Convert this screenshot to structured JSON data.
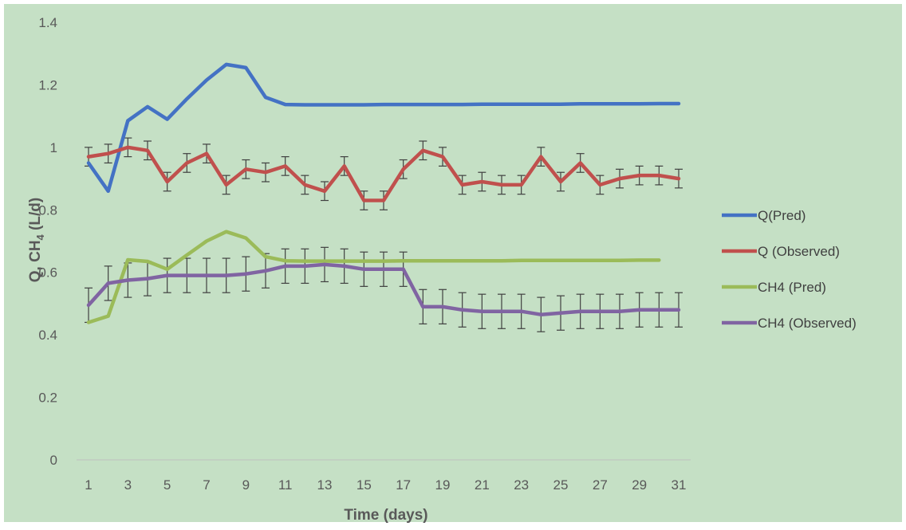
{
  "chart_data": {
    "type": "line",
    "xlabel": "Time (days)",
    "ylabel_main": "Q, CH",
    "ylabel_sub": "4",
    "ylabel_tail": " (L/d)",
    "ylim": [
      0,
      1.4
    ],
    "yticks": [
      "0",
      "0.2",
      "0.4",
      "0.6",
      "0.8",
      "1",
      "1.2",
      "1.4"
    ],
    "xlim": [
      1,
      31
    ],
    "xticks": [
      "1",
      "3",
      "5",
      "7",
      "9",
      "11",
      "13",
      "15",
      "17",
      "19",
      "21",
      "23",
      "25",
      "27",
      "29",
      "31"
    ],
    "background_color": "#c5e0c5",
    "grid": false,
    "legend_position": "right",
    "series": [
      {
        "name": "Q(Pred)",
        "color": "#4472c4",
        "x": [
          1,
          2,
          3,
          4,
          5,
          6,
          7,
          8,
          9,
          10,
          11,
          12,
          13,
          14,
          15,
          16,
          17,
          18,
          19,
          20,
          21,
          22,
          23,
          24,
          25,
          26,
          27,
          28,
          29,
          30,
          31
        ],
        "values": [
          0.95,
          0.86,
          1.085,
          1.13,
          1.09,
          1.155,
          1.215,
          1.265,
          1.255,
          1.16,
          1.137,
          1.136,
          1.136,
          1.136,
          1.136,
          1.137,
          1.137,
          1.137,
          1.137,
          1.137,
          1.138,
          1.138,
          1.138,
          1.138,
          1.138,
          1.139,
          1.139,
          1.139,
          1.139,
          1.14,
          1.14
        ]
      },
      {
        "name": "Q (Observed)",
        "color": "#c0504d",
        "error": 0.03,
        "x": [
          1,
          2,
          3,
          4,
          5,
          6,
          7,
          8,
          9,
          10,
          11,
          12,
          13,
          14,
          15,
          16,
          17,
          18,
          19,
          20,
          21,
          22,
          23,
          24,
          25,
          26,
          27,
          28,
          29,
          30,
          31
        ],
        "values": [
          0.97,
          0.98,
          1.0,
          0.99,
          0.89,
          0.95,
          0.98,
          0.88,
          0.93,
          0.92,
          0.94,
          0.88,
          0.86,
          0.94,
          0.83,
          0.83,
          0.93,
          0.99,
          0.97,
          0.88,
          0.89,
          0.88,
          0.88,
          0.97,
          0.89,
          0.95,
          0.88,
          0.9,
          0.91,
          0.91,
          0.9
        ]
      },
      {
        "name": "CH4 (Pred)",
        "color": "#9bbb59",
        "x": [
          1,
          2,
          3,
          4,
          5,
          6,
          7,
          8,
          9,
          10,
          11,
          12,
          13,
          14,
          15,
          16,
          17,
          18,
          19,
          20,
          21,
          22,
          23,
          24,
          25,
          26,
          27,
          28,
          29,
          30
        ],
        "values": [
          0.44,
          0.46,
          0.64,
          0.635,
          0.61,
          0.655,
          0.7,
          0.73,
          0.71,
          0.65,
          0.637,
          0.636,
          0.636,
          0.636,
          0.636,
          0.636,
          0.637,
          0.637,
          0.637,
          0.637,
          0.637,
          0.637,
          0.638,
          0.638,
          0.638,
          0.638,
          0.638,
          0.638,
          0.639,
          0.639
        ]
      },
      {
        "name": "CH4 (Observed)",
        "color": "#8064a2",
        "error": 0.055,
        "x": [
          1,
          2,
          3,
          4,
          5,
          6,
          7,
          8,
          9,
          10,
          11,
          12,
          13,
          14,
          15,
          16,
          17,
          18,
          19,
          20,
          21,
          22,
          23,
          24,
          25,
          26,
          27,
          28,
          29,
          30,
          31
        ],
        "values": [
          0.495,
          0.565,
          0.575,
          0.58,
          0.59,
          0.59,
          0.59,
          0.59,
          0.595,
          0.605,
          0.62,
          0.62,
          0.625,
          0.62,
          0.61,
          0.61,
          0.61,
          0.49,
          0.49,
          0.48,
          0.475,
          0.475,
          0.475,
          0.465,
          0.47,
          0.475,
          0.475,
          0.475,
          0.48,
          0.48,
          0.48
        ]
      }
    ]
  }
}
